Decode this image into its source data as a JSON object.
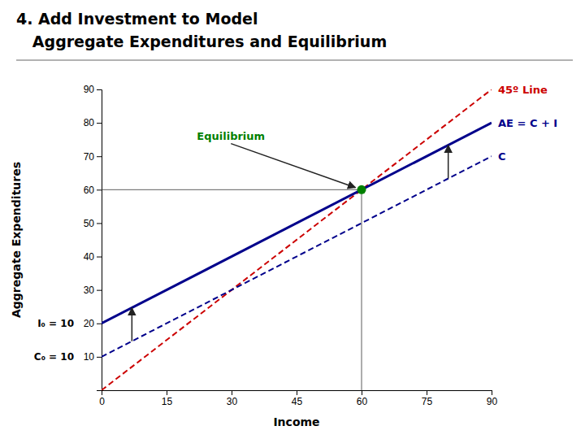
{
  "chart_data": {
    "type": "line",
    "title": "4. Add Investment to Model",
    "subtitle": "   Aggregate Expenditures and Equilibrium",
    "x_label": "Income",
    "y_label": "Aggregate Expenditures",
    "x": [
      0,
      90
    ],
    "series": [
      {
        "name": "45º Line",
        "color": "#CC0000",
        "line_style": "dashed",
        "values": [
          0,
          90
        ]
      },
      {
        "name": "C",
        "color": "#00008B",
        "line_style": "dashed",
        "values": [
          10,
          70.003
        ]
      },
      {
        "name": "AE = C + I",
        "color": "#00008B",
        "line_style": "solid",
        "values": [
          20,
          80.003
        ]
      }
    ],
    "points": [
      {
        "label": "Equilibrium",
        "x": 60,
        "y": 60,
        "color": "#008000",
        "label_x": 22,
        "label_y": 75
      }
    ],
    "shift_arrows": [
      {
        "x": 7,
        "from": 14.6669,
        "to": 24.6669
      },
      {
        "x": 80,
        "from": 63.336,
        "to": 73.336
      }
    ],
    "annotations": [
      {
        "text": "I₀ = 10",
        "y": 20
      },
      {
        "text": "C₀ = 10",
        "y": 10
      }
    ],
    "xlim": [
      0,
      90
    ],
    "ylim": [
      0,
      90
    ],
    "xticks": [
      0,
      15,
      30,
      45,
      60,
      75,
      90
    ],
    "yticks": [
      {
        "value": 0,
        "label": null
      },
      10,
      20,
      30,
      40,
      50,
      60,
      70,
      80,
      90
    ],
    "grid": false
  }
}
